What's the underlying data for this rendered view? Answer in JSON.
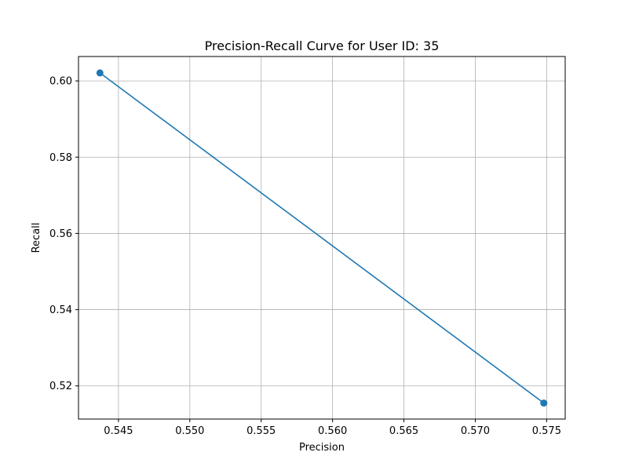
{
  "chart_data": {
    "type": "line",
    "title": "Precision-Recall Curve for User ID: 35",
    "xlabel": "Precision",
    "ylabel": "Recall",
    "xlim": [
      0.5422,
      0.5763
    ],
    "ylim": [
      0.5113,
      0.6064
    ],
    "xticks": [
      0.545,
      0.55,
      0.555,
      0.56,
      0.565,
      0.57,
      0.575
    ],
    "xtick_labels": [
      "0.545",
      "0.550",
      "0.555",
      "0.560",
      "0.565",
      "0.570",
      "0.575"
    ],
    "yticks": [
      0.52,
      0.54,
      0.56,
      0.58,
      0.6
    ],
    "ytick_labels": [
      "0.52",
      "0.54",
      "0.56",
      "0.58",
      "0.60"
    ],
    "grid": true,
    "legend": "none",
    "series": [
      {
        "color": "#1f77b4",
        "marker": "circle",
        "x": [
          0.5437,
          0.5748
        ],
        "y": [
          0.6021,
          0.5155
        ]
      }
    ]
  }
}
